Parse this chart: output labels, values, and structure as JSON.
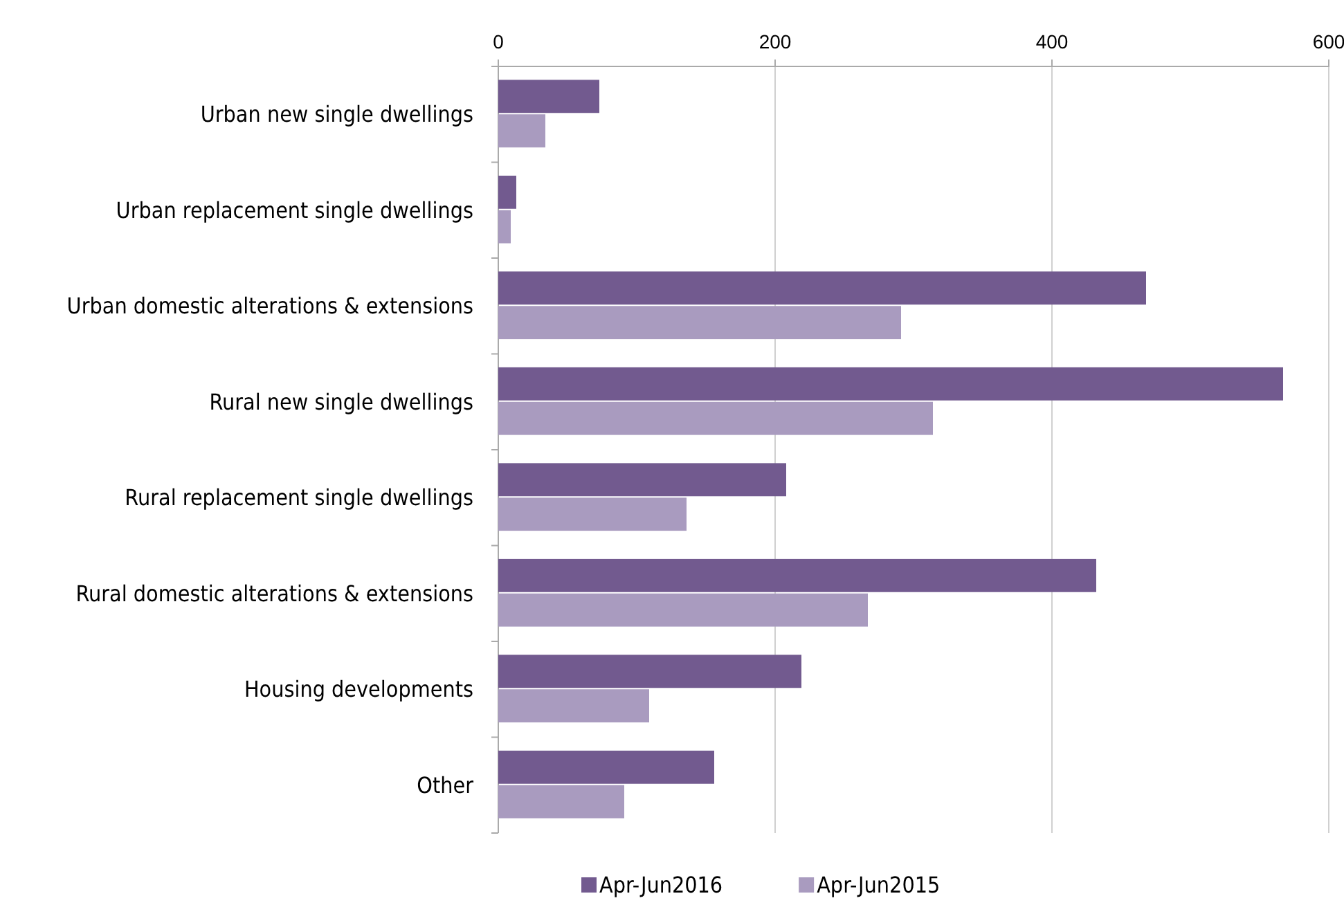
{
  "chart_data": {
    "type": "bar",
    "orientation": "horizontal",
    "categories": [
      "Urban new single dwellings",
      "Urban replacement single dwellings",
      "Urban domestic alterations & extensions",
      "Rural new single dwellings",
      "Rural replacement single dwellings",
      "Rural domestic alterations & extensions",
      "Housing developments",
      "Other"
    ],
    "series": [
      {
        "name": "Apr-Jun2016",
        "color": "#725a8f",
        "values": [
          73,
          13,
          468,
          567,
          208,
          432,
          219,
          156
        ]
      },
      {
        "name": "Apr-Jun2015",
        "color": "#a99bbf",
        "values": [
          34,
          9,
          291,
          314,
          136,
          267,
          109,
          91
        ]
      }
    ],
    "xlim": [
      0,
      600
    ],
    "xticks": [
      0,
      200,
      400,
      600
    ],
    "grid": "x",
    "legend": "bottom"
  }
}
